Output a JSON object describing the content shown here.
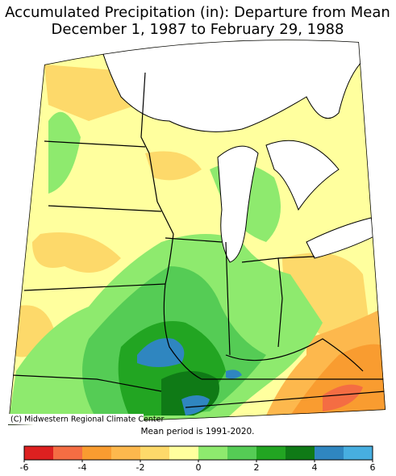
{
  "title": [
    "Accumulated Precipitation (in): Departure from Mean",
    "December 1, 1987 to February 29, 1988"
  ],
  "credit": "(C) Midwestern Regional Climate Center",
  "note": "Mean period is 1991-2020.",
  "colorbar": {
    "lim": [
      -6,
      6
    ],
    "ticks": [
      -6,
      -4,
      -2,
      0,
      2,
      4,
      6
    ],
    "colors": [
      "#dd2020",
      "#f46d43",
      "#f99c30",
      "#fdb84d",
      "#fdd96a",
      "#ffff9e",
      "#8eea6e",
      "#55cc55",
      "#22a522",
      "#0f7a16",
      "#2f86c0",
      "#47aee0"
    ]
  }
}
